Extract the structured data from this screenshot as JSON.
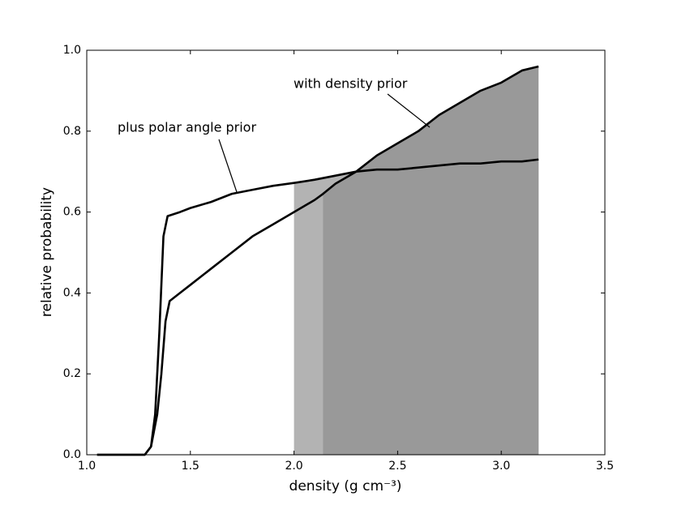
{
  "chart_data": {
    "type": "line",
    "x_label": "density (g cm⁻³)",
    "y_label": "relative probability",
    "xlim": [
      1.0,
      3.5
    ],
    "ylim": [
      0.0,
      1.0
    ],
    "xticks": [
      {
        "value": 1.0,
        "label": "1.0"
      },
      1.5,
      {
        "value": 2.0,
        "label": "2.0"
      },
      2.5,
      {
        "value": 3.0,
        "label": "3.0"
      },
      3.5
    ],
    "yticks": [
      {
        "value": 0.0,
        "label": "0.0"
      },
      0.2,
      0.4,
      0.6,
      0.8,
      {
        "value": 1.0,
        "label": "1.0"
      }
    ],
    "grid": false,
    "series": [
      {
        "name": "plus polar angle prior",
        "color": "#000000",
        "fill_color": "#b3b3b3",
        "fill_start": 2.0,
        "x": [
          1.05,
          1.28,
          1.31,
          1.33,
          1.35,
          1.37,
          1.39,
          1.45,
          1.5,
          1.6,
          1.7,
          1.8,
          1.9,
          2.0,
          2.1,
          2.2,
          2.3,
          2.4,
          2.5,
          2.6,
          2.7,
          2.8,
          2.9,
          3.0,
          3.1,
          3.18
        ],
        "values": [
          0,
          0,
          0.02,
          0.1,
          0.3,
          0.54,
          0.59,
          0.6,
          0.61,
          0.625,
          0.645,
          0.655,
          0.665,
          0.672,
          0.68,
          0.69,
          0.7,
          0.705,
          0.705,
          0.71,
          0.715,
          0.72,
          0.72,
          0.725,
          0.725,
          0.73
        ]
      },
      {
        "name": "with density prior",
        "color": "#000000",
        "fill_color": "#999999",
        "fill_start": 2.14,
        "x": [
          1.05,
          1.28,
          1.31,
          1.34,
          1.36,
          1.38,
          1.4,
          1.45,
          1.5,
          1.6,
          1.7,
          1.8,
          1.9,
          2.0,
          2.1,
          2.14,
          2.2,
          2.3,
          2.4,
          2.5,
          2.6,
          2.7,
          2.8,
          2.9,
          3.0,
          3.1,
          3.18
        ],
        "values": [
          0,
          0,
          0.02,
          0.1,
          0.2,
          0.33,
          0.38,
          0.4,
          0.42,
          0.46,
          0.5,
          0.54,
          0.57,
          0.6,
          0.63,
          0.645,
          0.67,
          0.7,
          0.74,
          0.77,
          0.8,
          0.84,
          0.87,
          0.9,
          0.92,
          0.95,
          0.96
        ]
      }
    ]
  }
}
